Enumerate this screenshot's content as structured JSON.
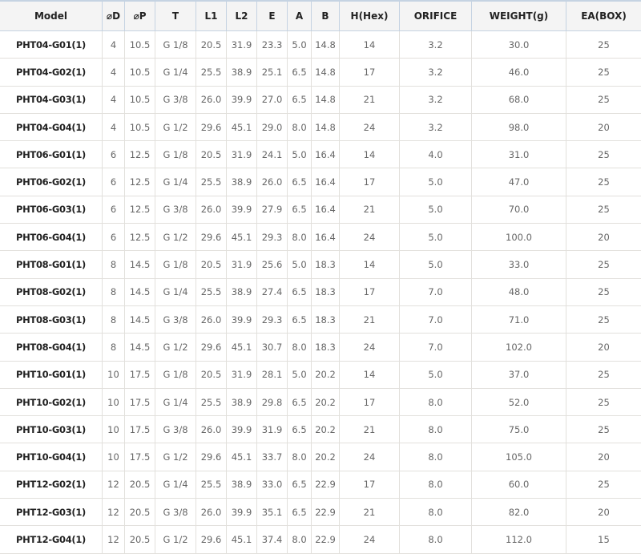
{
  "table": {
    "headers": [
      "Model",
      "⌀D",
      "⌀P",
      "T",
      "L1",
      "L2",
      "E",
      "A",
      "B",
      "H(Hex)",
      "ORIFICE",
      "WEIGHT(g)",
      "EA(BOX)"
    ],
    "rows": [
      [
        "PHT04-G01(1)",
        "4",
        "10.5",
        "G 1/8",
        "20.5",
        "31.9",
        "23.3",
        "5.0",
        "14.8",
        "14",
        "3.2",
        "30.0",
        "25"
      ],
      [
        "PHT04-G02(1)",
        "4",
        "10.5",
        "G 1/4",
        "25.5",
        "38.9",
        "25.1",
        "6.5",
        "14.8",
        "17",
        "3.2",
        "46.0",
        "25"
      ],
      [
        "PHT04-G03(1)",
        "4",
        "10.5",
        "G 3/8",
        "26.0",
        "39.9",
        "27.0",
        "6.5",
        "14.8",
        "21",
        "3.2",
        "68.0",
        "25"
      ],
      [
        "PHT04-G04(1)",
        "4",
        "10.5",
        "G 1/2",
        "29.6",
        "45.1",
        "29.0",
        "8.0",
        "14.8",
        "24",
        "3.2",
        "98.0",
        "20"
      ],
      [
        "PHT06-G01(1)",
        "6",
        "12.5",
        "G 1/8",
        "20.5",
        "31.9",
        "24.1",
        "5.0",
        "16.4",
        "14",
        "4.0",
        "31.0",
        "25"
      ],
      [
        "PHT06-G02(1)",
        "6",
        "12.5",
        "G 1/4",
        "25.5",
        "38.9",
        "26.0",
        "6.5",
        "16.4",
        "17",
        "5.0",
        "47.0",
        "25"
      ],
      [
        "PHT06-G03(1)",
        "6",
        "12.5",
        "G 3/8",
        "26.0",
        "39.9",
        "27.9",
        "6.5",
        "16.4",
        "21",
        "5.0",
        "70.0",
        "25"
      ],
      [
        "PHT06-G04(1)",
        "6",
        "12.5",
        "G 1/2",
        "29.6",
        "45.1",
        "29.3",
        "8.0",
        "16.4",
        "24",
        "5.0",
        "100.0",
        "20"
      ],
      [
        "PHT08-G01(1)",
        "8",
        "14.5",
        "G 1/8",
        "20.5",
        "31.9",
        "25.6",
        "5.0",
        "18.3",
        "14",
        "5.0",
        "33.0",
        "25"
      ],
      [
        "PHT08-G02(1)",
        "8",
        "14.5",
        "G 1/4",
        "25.5",
        "38.9",
        "27.4",
        "6.5",
        "18.3",
        "17",
        "7.0",
        "48.0",
        "25"
      ],
      [
        "PHT08-G03(1)",
        "8",
        "14.5",
        "G 3/8",
        "26.0",
        "39.9",
        "29.3",
        "6.5",
        "18.3",
        "21",
        "7.0",
        "71.0",
        "25"
      ],
      [
        "PHT08-G04(1)",
        "8",
        "14.5",
        "G 1/2",
        "29.6",
        "45.1",
        "30.7",
        "8.0",
        "18.3",
        "24",
        "7.0",
        "102.0",
        "20"
      ],
      [
        "PHT10-G01(1)",
        "10",
        "17.5",
        "G 1/8",
        "20.5",
        "31.9",
        "28.1",
        "5.0",
        "20.2",
        "14",
        "5.0",
        "37.0",
        "25"
      ],
      [
        "PHT10-G02(1)",
        "10",
        "17.5",
        "G 1/4",
        "25.5",
        "38.9",
        "29.8",
        "6.5",
        "20.2",
        "17",
        "8.0",
        "52.0",
        "25"
      ],
      [
        "PHT10-G03(1)",
        "10",
        "17.5",
        "G 3/8",
        "26.0",
        "39.9",
        "31.9",
        "6.5",
        "20.2",
        "21",
        "8.0",
        "75.0",
        "25"
      ],
      [
        "PHT10-G04(1)",
        "10",
        "17.5",
        "G 1/2",
        "29.6",
        "45.1",
        "33.7",
        "8.0",
        "20.2",
        "24",
        "8.0",
        "105.0",
        "20"
      ],
      [
        "PHT12-G02(1)",
        "12",
        "20.5",
        "G 1/4",
        "25.5",
        "38.9",
        "33.0",
        "6.5",
        "22.9",
        "17",
        "8.0",
        "60.0",
        "25"
      ],
      [
        "PHT12-G03(1)",
        "12",
        "20.5",
        "G 3/8",
        "26.0",
        "39.9",
        "35.1",
        "6.5",
        "22.9",
        "21",
        "8.0",
        "82.0",
        "20"
      ],
      [
        "PHT12-G04(1)",
        "12",
        "20.5",
        "G 1/2",
        "29.6",
        "45.1",
        "37.4",
        "8.0",
        "22.9",
        "24",
        "8.0",
        "112.0",
        "15"
      ]
    ]
  }
}
